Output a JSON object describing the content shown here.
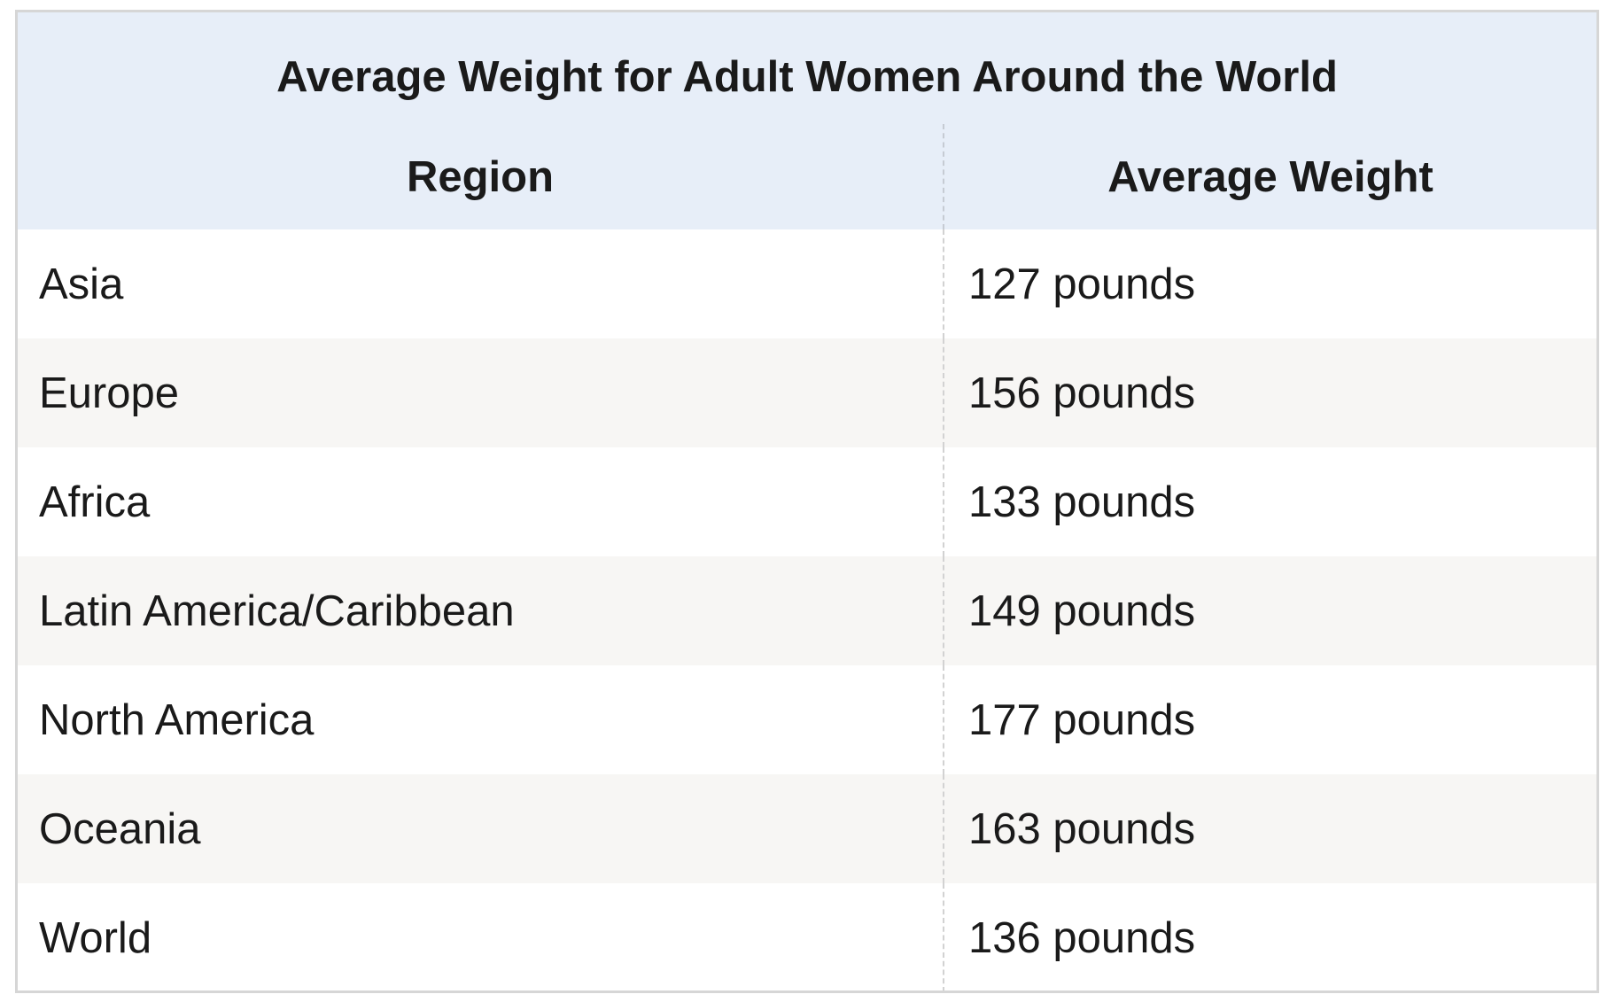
{
  "table": {
    "title": "Average Weight for Adult Women Around the World",
    "headers": {
      "region": "Region",
      "weight": "Average Weight"
    },
    "rows": [
      {
        "region": "Asia",
        "weight": "127 pounds"
      },
      {
        "region": "Europe",
        "weight": "156 pounds"
      },
      {
        "region": "Africa",
        "weight": "133 pounds"
      },
      {
        "region": "Latin America/Caribbean",
        "weight": "149 pounds"
      },
      {
        "region": "North America",
        "weight": "177 pounds"
      },
      {
        "region": "Oceania",
        "weight": "163 pounds"
      },
      {
        "region": "World",
        "weight": "136 pounds"
      }
    ]
  },
  "colors": {
    "header_background": "#e7eef8",
    "row_alt_background": "#f7f6f4",
    "border": "#d6d6d6"
  }
}
